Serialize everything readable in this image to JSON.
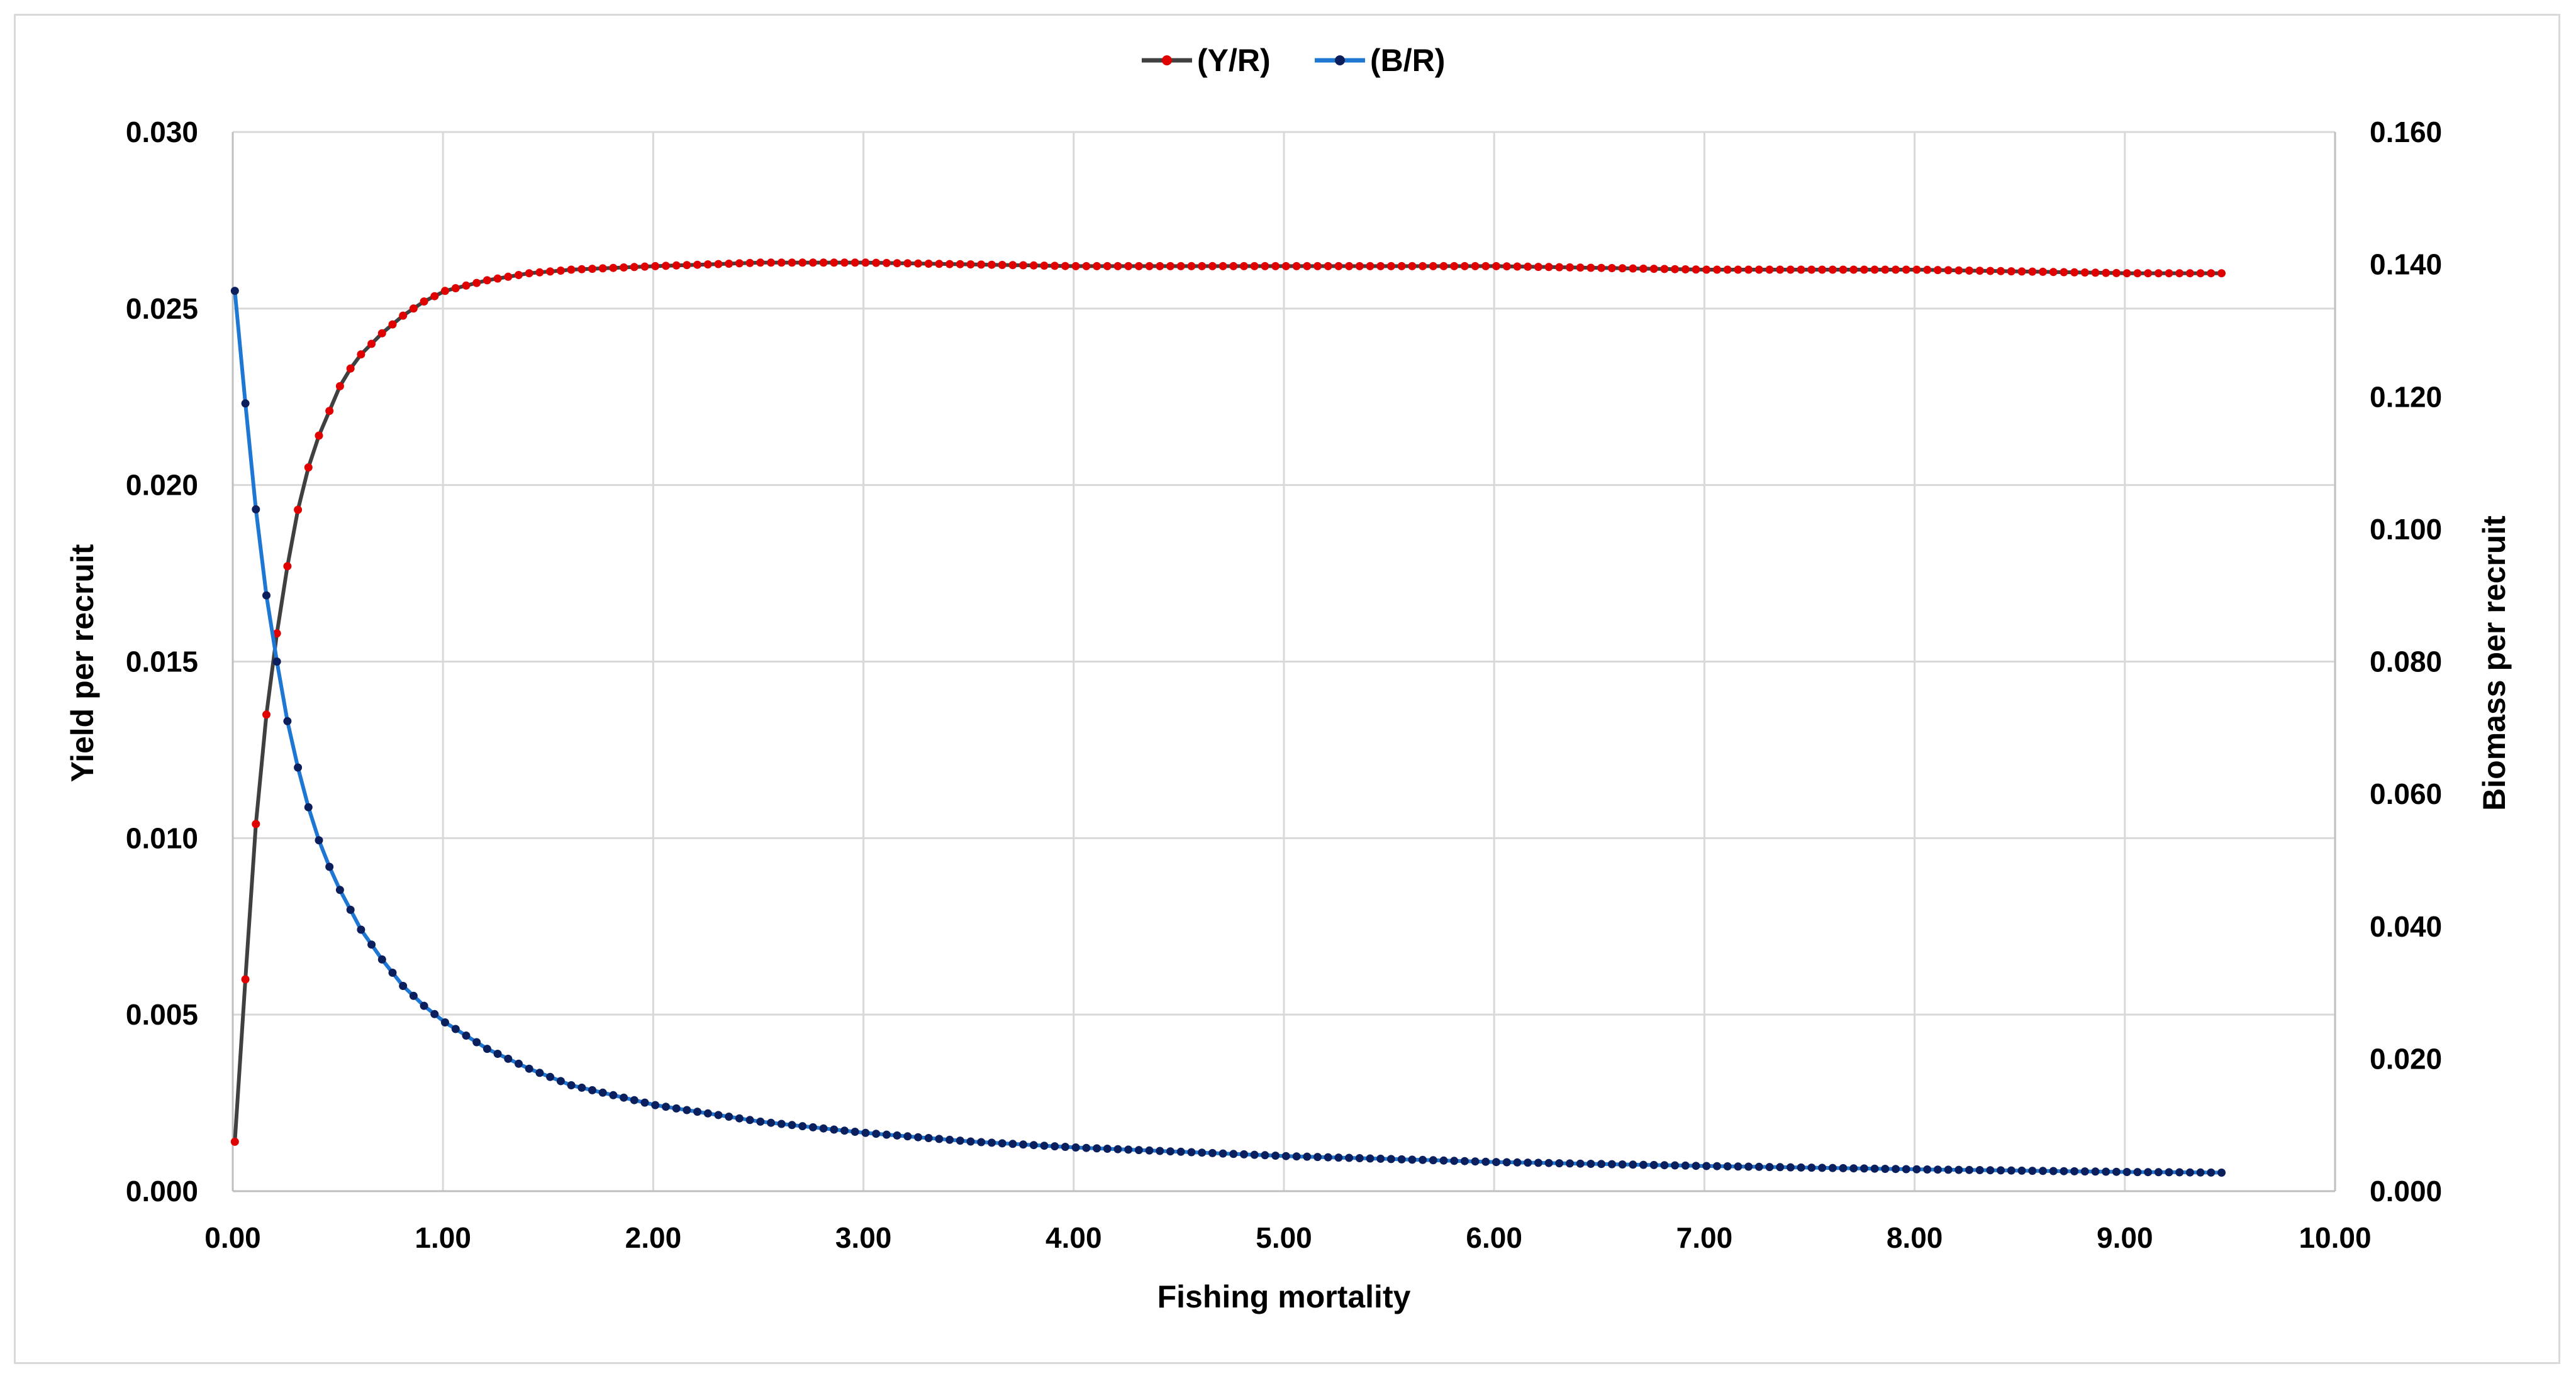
{
  "chart_data": {
    "type": "line",
    "title": "",
    "xlabel": "Fishing mortality",
    "ylabel_left": "Yield per recruit",
    "ylabel_right": "Biomass per recruit",
    "xlim": [
      0,
      10
    ],
    "ylim_left": [
      0,
      0.03
    ],
    "ylim_right": [
      0,
      0.16
    ],
    "x_ticks": [
      "0.00",
      "1.00",
      "2.00",
      "3.00",
      "4.00",
      "5.00",
      "6.00",
      "7.00",
      "8.00",
      "9.00",
      "10.00"
    ],
    "y_left_ticks": [
      "0.000",
      "0.005",
      "0.010",
      "0.015",
      "0.020",
      "0.025",
      "0.030"
    ],
    "y_right_ticks": [
      "0.000",
      "0.020",
      "0.040",
      "0.060",
      "0.080",
      "0.100",
      "0.120",
      "0.140",
      "0.160"
    ],
    "grid": true,
    "legend_position": "top-center",
    "x_range": {
      "start": 0.01,
      "step": 0.05,
      "end": 9.46
    },
    "series": [
      {
        "name": "(Y/R)",
        "axis": "left",
        "line_color": "#404040",
        "marker_color": "#e00000",
        "points": [
          [
            0.01,
            0.0014
          ],
          [
            0.06,
            0.006
          ],
          [
            0.11,
            0.0104
          ],
          [
            0.16,
            0.0135
          ],
          [
            0.21,
            0.0158
          ],
          [
            0.26,
            0.0177
          ],
          [
            0.31,
            0.0193
          ],
          [
            0.36,
            0.0205
          ],
          [
            0.41,
            0.0214
          ],
          [
            0.46,
            0.0221
          ],
          [
            0.51,
            0.0228
          ],
          [
            0.56,
            0.0233
          ],
          [
            0.61,
            0.0237
          ],
          [
            0.71,
            0.0243
          ],
          [
            0.81,
            0.0248
          ],
          [
            0.91,
            0.0252
          ],
          [
            1.01,
            0.0255
          ],
          [
            1.21,
            0.0258
          ],
          [
            1.41,
            0.026
          ],
          [
            1.61,
            0.0261
          ],
          [
            2.01,
            0.0262
          ],
          [
            2.51,
            0.0263
          ],
          [
            3.01,
            0.0263
          ],
          [
            4.01,
            0.0262
          ],
          [
            5.01,
            0.0262
          ],
          [
            6.01,
            0.0262
          ],
          [
            7.01,
            0.0261
          ],
          [
            8.01,
            0.0261
          ],
          [
            9.01,
            0.026
          ],
          [
            9.46,
            0.026
          ]
        ]
      },
      {
        "name": "(B/R)",
        "axis": "right",
        "line_color": "#1f77d4",
        "marker_color": "#0a1f5c",
        "points": [
          [
            0.01,
            0.136
          ],
          [
            0.06,
            0.119
          ],
          [
            0.11,
            0.103
          ],
          [
            0.16,
            0.09
          ],
          [
            0.21,
            0.08
          ],
          [
            0.26,
            0.071
          ],
          [
            0.31,
            0.064
          ],
          [
            0.36,
            0.058
          ],
          [
            0.41,
            0.053
          ],
          [
            0.46,
            0.049
          ],
          [
            0.51,
            0.0455
          ],
          [
            0.61,
            0.0395
          ],
          [
            0.71,
            0.035
          ],
          [
            0.81,
            0.031
          ],
          [
            0.91,
            0.028
          ],
          [
            1.01,
            0.0255
          ],
          [
            1.21,
            0.0215
          ],
          [
            1.41,
            0.0185
          ],
          [
            1.61,
            0.016
          ],
          [
            1.81,
            0.0145
          ],
          [
            2.01,
            0.013
          ],
          [
            2.51,
            0.0105
          ],
          [
            3.01,
            0.0088
          ],
          [
            3.51,
            0.0075
          ],
          [
            4.01,
            0.0066
          ],
          [
            5.01,
            0.0053
          ],
          [
            6.01,
            0.0044
          ],
          [
            7.01,
            0.0038
          ],
          [
            8.01,
            0.0033
          ],
          [
            9.01,
            0.0029
          ],
          [
            9.46,
            0.0028
          ]
        ]
      }
    ]
  }
}
